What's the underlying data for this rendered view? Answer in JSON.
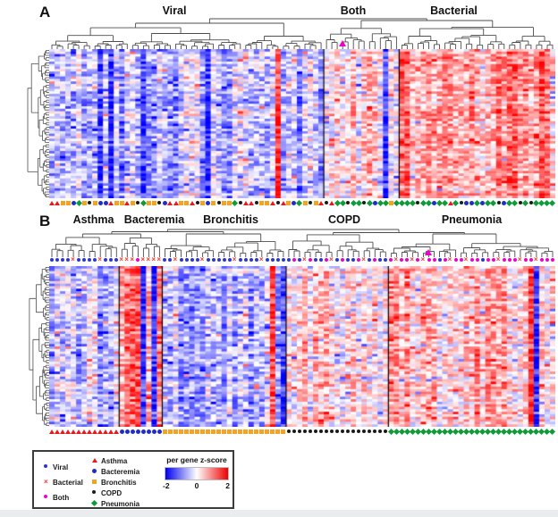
{
  "panel_a": {
    "label": "A",
    "groups": [
      "Viral",
      "Both",
      "Bacterial"
    ]
  },
  "panel_b": {
    "label": "B",
    "groups": [
      "Asthma",
      "Bacteremia",
      "Bronchitis",
      "COPD",
      "Pneumonia"
    ]
  },
  "legend": {
    "infection_classes": [
      {
        "code": "V",
        "label": "Viral"
      },
      {
        "code": "X",
        "label": "Bacterial"
      },
      {
        "code": "M",
        "label": "Both"
      }
    ],
    "disease_classes": [
      {
        "code": "A",
        "label": "Asthma"
      },
      {
        "code": "B",
        "label": "Bacteremia"
      },
      {
        "code": "R",
        "label": "Bronchitis"
      },
      {
        "code": "C",
        "label": "COPD"
      },
      {
        "code": "P",
        "label": "Pneumonia"
      }
    ],
    "scale": {
      "title": "per gene z-score",
      "ticks": [
        "-2",
        "0",
        "2"
      ],
      "colors": [
        "#0000ee",
        "#ffffff",
        "#ee0000"
      ]
    }
  },
  "markers": {
    "V": {
      "shape": "circle",
      "color": "#2b35d8",
      "size": 4
    },
    "X": {
      "shape": "x",
      "color": "#f0392f",
      "size": 6
    },
    "M": {
      "shape": "circle",
      "color": "#ee00cc",
      "size": 4
    },
    "A": {
      "shape": "triangle",
      "color": "#e41a1c",
      "size": 6
    },
    "B": {
      "shape": "circle",
      "color": "#1f2dc4",
      "size": 5
    },
    "R": {
      "shape": "square",
      "color": "#efa423",
      "size": 5
    },
    "C": {
      "shape": "circle",
      "color": "#1a1a1a",
      "size": 4
    },
    "P": {
      "shape": "diamond",
      "color": "#0f9b38",
      "size": 5
    },
    "T": {
      "shape": "triangle",
      "color": "#ee00cc",
      "size": 8
    }
  },
  "chart_data": [
    {
      "panel": "A",
      "type": "heatmap",
      "title_groups": [
        "Viral",
        "Both",
        "Bacterial"
      ],
      "columns": 94,
      "rows": 60,
      "zscore_range": [
        -2,
        2
      ],
      "colorscale": {
        "low": "#0000ee",
        "mid": "#ffffff",
        "high": "#ee0000"
      },
      "clusters": [
        {
          "name": "Viral",
          "columns": 51,
          "mean_z": -0.55
        },
        {
          "name": "Both",
          "columns": 14,
          "mean_z": 0.3
        },
        {
          "name": "Bacterial",
          "columns": 29,
          "mean_z": 0.75
        }
      ],
      "seed": 42,
      "column_markers_bottom": "AARRBPRCRBBARRARCPRRCBAARRACRBRCRRPCAACRRACARBPRCRACAPPCPPCPBPPRPPPPCPPBPPAPCBBPBPPCBPPCPCPPPP",
      "highlight_marker": {
        "code": "T",
        "column": 54
      }
    },
    {
      "panel": "B",
      "type": "heatmap",
      "title_groups": [
        "Asthma",
        "Bacteremia",
        "Bronchitis",
        "COPD",
        "Pneumonia"
      ],
      "columns": 94,
      "rows": 64,
      "zscore_range": [
        -2,
        2
      ],
      "colorscale": {
        "low": "#0000ee",
        "mid": "#ffffff",
        "high": "#ee0000"
      },
      "clusters": [
        {
          "name": "Asthma",
          "columns": 13,
          "mean_z": -0.35
        },
        {
          "name": "Bacteremia",
          "columns": 8,
          "mean_z": 0.9
        },
        {
          "name": "Bronchitis",
          "columns": 23,
          "mean_z": -0.55
        },
        {
          "name": "COPD",
          "columns": 19,
          "mean_z": 0.3
        },
        {
          "name": "Pneumonia",
          "columns": 31,
          "mean_z": 0.5
        }
      ],
      "seed": 1337,
      "column_markers_top": "VVVVXVVVVXVVVXXXMXXXXVVXVVVVXVVVVVXVVVVXVVVVVMVXMVVMXVMVVMXVMVVMXMMXMXMMVMXMMXMMVMMXMMMXMMXMMM",
      "column_markers_bottom": "AAAAAAAAAAAAABBBBBBBBRRRRRRRRRRRRRRRRRRRRRRRCCCCCCCCCCCCCCCCCCCPPPPPPPPPPPPPPPPPPPPPPPPPPPPPPP",
      "highlight_marker": {
        "code": "T",
        "column": 70
      }
    }
  ]
}
